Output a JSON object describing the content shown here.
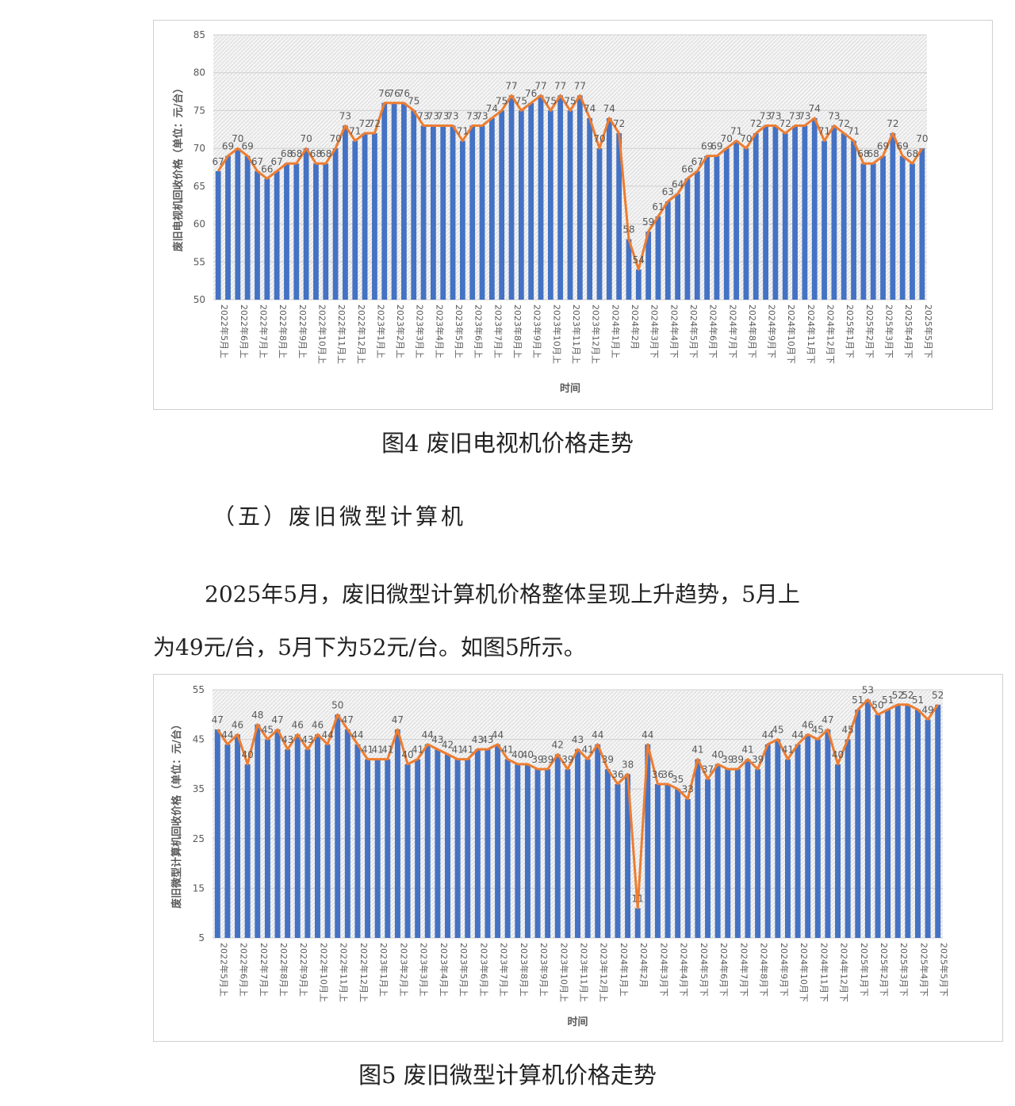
{
  "figure4": {
    "caption": "图4  废旧电视机价格走势",
    "chart_data": {
      "type": "bar",
      "ylabel": "废旧电视机回收价格（单位：元/台）",
      "xlabel": "时间",
      "ylim": [
        50,
        85
      ],
      "yticks": [
        50,
        55,
        60,
        65,
        70,
        75,
        80,
        85
      ],
      "categories": [
        "2022年5月上",
        "2022年5月下",
        "2022年6月上",
        "2022年6月下",
        "2022年7月上",
        "2022年7月下",
        "2022年8月上",
        "2022年8月下",
        "2022年9月上",
        "2022年9月下",
        "2022年10月上",
        "2022年10月下",
        "2022年11月上",
        "2022年11月下",
        "2022年12月上",
        "2022年12月下",
        "2023年1月上",
        "2023年1月下",
        "2023年2月上",
        "2023年2月下",
        "2023年3月上",
        "2023年3月下",
        "2023年4月上",
        "2023年4月下",
        "2023年5月上",
        "2023年5月下",
        "2023年6月上",
        "2023年6月下",
        "2023年7月上",
        "2023年7月下",
        "2023年8月上",
        "2023年8月下",
        "2023年9月上",
        "2023年9月下",
        "2023年10月上",
        "2023年10月下",
        "2023年11月上",
        "2023年11月下",
        "2023年12月上",
        "2023年12月下",
        "2024年1月上",
        "2024年1月下",
        "2024年2月",
        "2024年3月上",
        "2024年3月下",
        "2024年4月上",
        "2024年4月下",
        "2024年5月上",
        "2024年5月下",
        "2024年6月上",
        "2024年6月下",
        "2024年7月上",
        "2024年7月下",
        "2024年8月上",
        "2024年8月下",
        "2024年9月上",
        "2024年9月下",
        "2024年10月上",
        "2024年10月下",
        "2024年11月上",
        "2024年11月下",
        "2024年12月上",
        "2024年12月下",
        "2025年1月上",
        "2025年1月下",
        "2025年2月上",
        "2025年2月下",
        "2025年3月上",
        "2025年3月下",
        "2025年4月上",
        "2025年4月下",
        "2025年5月上",
        "2025年5月下"
      ],
      "tick_labels": [
        "2022年5月上",
        "2022年6月上",
        "2022年7月上",
        "2022年8月上",
        "2022年9月上",
        "2022年10月上",
        "2022年11月上",
        "2022年12月上",
        "2023年1月上",
        "2023年2月上",
        "2023年3月上",
        "2023年4月上",
        "2023年5月上",
        "2023年6月上",
        "2023年7月上",
        "2023年8月上",
        "2023年9月上",
        "2023年10月上",
        "2023年11月上",
        "2023年12月上",
        "2024年1月上",
        "2024年2月",
        "2024年3月下",
        "2024年4月下",
        "2024年5月下",
        "2024年6月下",
        "2024年7月下",
        "2024年8月下",
        "2024年9月下",
        "2024年10月下",
        "2024年11月下",
        "2024年12月下",
        "2025年1月下",
        "2025年2月下",
        "2025年3月下",
        "2025年4月下",
        "2025年5月下"
      ],
      "tick_every": 2,
      "values": [
        67,
        69,
        70,
        69,
        67,
        66,
        67,
        68,
        68,
        70,
        68,
        68,
        70,
        73,
        71,
        72,
        72,
        76,
        76,
        76,
        75,
        73,
        73,
        73,
        73,
        71,
        73,
        73,
        74,
        75,
        77,
        75,
        76,
        77,
        75,
        77,
        75,
        77,
        74,
        70,
        74,
        72,
        58,
        54,
        59,
        61,
        63,
        64,
        66,
        67,
        69,
        69,
        70,
        71,
        70,
        72,
        73,
        73,
        72,
        73,
        73,
        74,
        71,
        73,
        72,
        71,
        68,
        68,
        69,
        72,
        69,
        68,
        70
      ],
      "series_colors": {
        "bar": "#4472c4",
        "line": "#ed7d31"
      }
    }
  },
  "section": {
    "heading": "（五）废旧微型计算机",
    "paragraph_line1": "2025年5月，废旧微型计算机价格整体呈现上升趋势，5月上",
    "paragraph_line2": "为49元/台，5月下为52元/台。如图5所示。"
  },
  "figure5": {
    "caption": "图5  废旧微型计算机价格走势",
    "chart_data": {
      "type": "bar",
      "ylabel": "废旧微型计算机回收价格（单位：元/台）",
      "xlabel": "时间",
      "ylim": [
        5,
        55
      ],
      "yticks": [
        5,
        15,
        25,
        35,
        45,
        55
      ],
      "categories": [
        "2022年5月上",
        "2022年5月下",
        "2022年6月上",
        "2022年6月下",
        "2022年7月上",
        "2022年7月下",
        "2022年8月上",
        "2022年8月下",
        "2022年9月上",
        "2022年9月下",
        "2022年10月上",
        "2022年10月下",
        "2022年11月上",
        "2022年11月下",
        "2022年12月上",
        "2022年12月下",
        "2023年1月上",
        "2023年1月下",
        "2023年2月上",
        "2023年2月下",
        "2023年3月上",
        "2023年3月下",
        "2023年4月上",
        "2023年4月下",
        "2023年5月上",
        "2023年5月下",
        "2023年6月上",
        "2023年6月下",
        "2023年7月上",
        "2023年7月下",
        "2023年8月上",
        "2023年8月下",
        "2023年9月上",
        "2023年9月下",
        "2023年10月上",
        "2023年10月下",
        "2023年11月上",
        "2023年11月下",
        "2023年12月上",
        "2023年12月下",
        "2024年1月上",
        "2024年1月下",
        "2024年2月",
        "2024年3月上",
        "2024年3月下",
        "2024年4月上",
        "2024年4月下",
        "2024年5月上",
        "2024年5月下",
        "2024年6月上",
        "2024年6月下",
        "2024年7月上",
        "2024年7月下",
        "2024年8月上",
        "2024年8月下",
        "2024年9月上",
        "2024年9月下",
        "2024年10月上",
        "2024年10月下",
        "2024年11月上",
        "2024年11月下",
        "2024年12月上",
        "2024年12月下",
        "2025年1月上",
        "2025年1月下",
        "2025年2月上",
        "2025年2月下",
        "2025年3月上",
        "2025年3月下",
        "2025年4月上",
        "2025年4月下",
        "2025年5月上",
        "2025年5月下"
      ],
      "tick_labels": [
        "2022年5月上",
        "2022年6月上",
        "2022年7月上",
        "2022年8月上",
        "2022年9月上",
        "2022年10月上",
        "2022年11月上",
        "2022年12月上",
        "2023年1月上",
        "2023年2月上",
        "2023年3月上",
        "2023年4月上",
        "2023年5月上",
        "2023年6月上",
        "2023年7月上",
        "2023年8月上",
        "2023年9月上",
        "2023年10月上",
        "2023年11月上",
        "2023年12月上",
        "2024年1月上",
        "2024年2月",
        "2024年3月下",
        "2024年4月下",
        "2024年5月下",
        "2024年6月下",
        "2024年7月下",
        "2024年8月下",
        "2024年9月下",
        "2024年10月下",
        "2024年11月下",
        "2024年12月下",
        "2025年1月下",
        "2025年2月下",
        "2025年3月下",
        "2025年4月下",
        "2025年5月下"
      ],
      "tick_every": 2,
      "values": [
        47,
        44,
        46,
        40,
        48,
        45,
        47,
        43,
        46,
        43,
        46,
        44,
        50,
        47,
        44,
        41,
        41,
        41,
        47,
        40,
        41,
        44,
        43,
        42,
        41,
        41,
        43,
        43,
        44,
        41,
        40,
        40,
        39,
        39,
        42,
        39,
        43,
        41,
        44,
        39,
        36,
        38,
        11,
        44,
        36,
        36,
        35,
        33,
        41,
        37,
        40,
        39,
        39,
        41,
        39,
        44,
        45,
        41,
        44,
        46,
        45,
        47,
        40,
        45,
        51,
        53,
        50,
        51,
        52,
        52,
        51,
        49,
        52
      ],
      "series_colors": {
        "bar": "#4472c4",
        "line": "#ed7d31"
      }
    }
  }
}
